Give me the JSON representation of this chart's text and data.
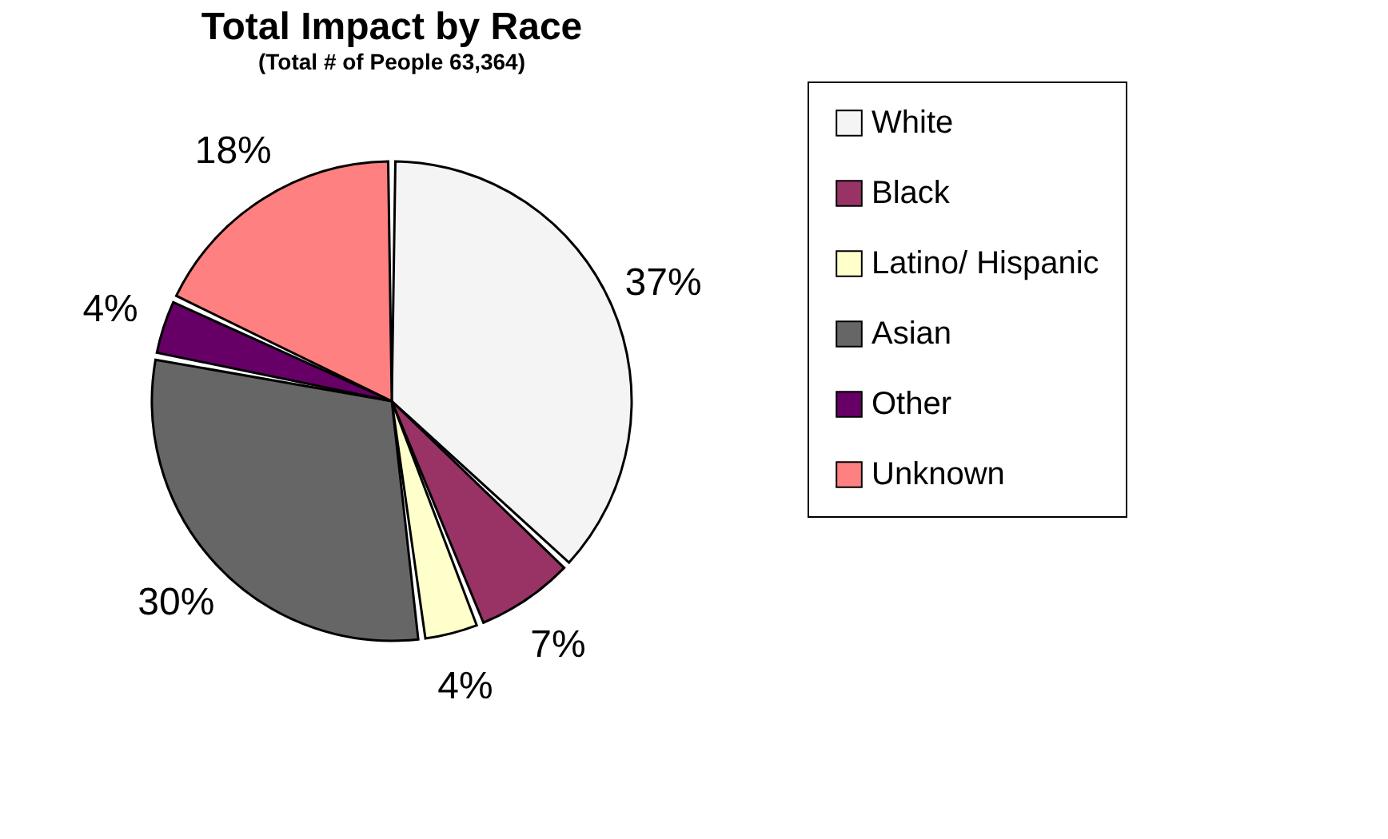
{
  "chart_data": {
    "type": "pie",
    "title": "Total Impact by Race",
    "subtitle": "(Total # of People 63,364)",
    "categories": [
      "White",
      "Black",
      "Latino/ Hispanic",
      "Asian",
      "Other",
      "Unknown"
    ],
    "values": [
      37,
      7,
      4,
      30,
      4,
      18
    ],
    "colors": [
      "#f4f4f4",
      "#993366",
      "#ffffcc",
      "#666666",
      "#660066",
      "#ff8080"
    ],
    "value_labels": [
      "37%",
      "7%",
      "4%",
      "30%",
      "4%",
      "18%"
    ],
    "legend": "right"
  }
}
